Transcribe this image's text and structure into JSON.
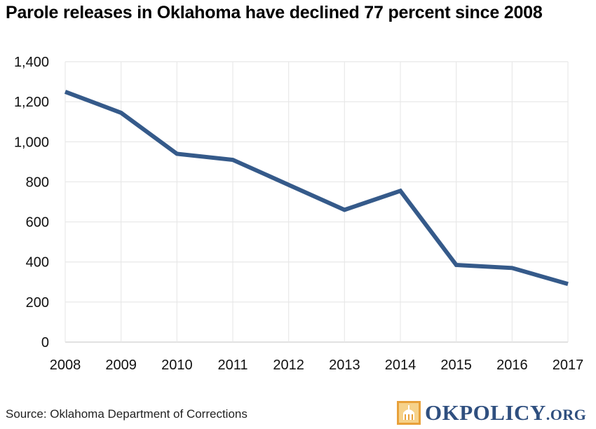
{
  "title": "Parole releases in Oklahoma have declined 77 percent since 2008",
  "source": "Source: Oklahoma Department of Corrections",
  "logo": {
    "main": "OKPOLICY",
    "suffix": ".ORG",
    "mark_icon": "capitol-dome-icon"
  },
  "colors": {
    "line": "#355a8a",
    "grid": "#e8e8e8",
    "axis": "#cfcfcf",
    "logo": "#2f4f7f"
  },
  "chart_data": {
    "type": "line",
    "title": "Parole releases in Oklahoma have declined 77 percent since 2008",
    "xlabel": "",
    "ylabel": "",
    "categories": [
      "2008",
      "2009",
      "2010",
      "2011",
      "2012",
      "2013",
      "2014",
      "2015",
      "2016",
      "2017"
    ],
    "values": [
      1250,
      1145,
      940,
      910,
      785,
      660,
      755,
      385,
      370,
      290
    ],
    "ylim": [
      0,
      1400
    ],
    "yticks": [
      0,
      200,
      400,
      600,
      800,
      1000,
      1200,
      1400
    ],
    "ytick_labels": [
      "0",
      "200",
      "400",
      "600",
      "800",
      "1,000",
      "1,200",
      "1,400"
    ],
    "grid": true,
    "legend": "none"
  }
}
